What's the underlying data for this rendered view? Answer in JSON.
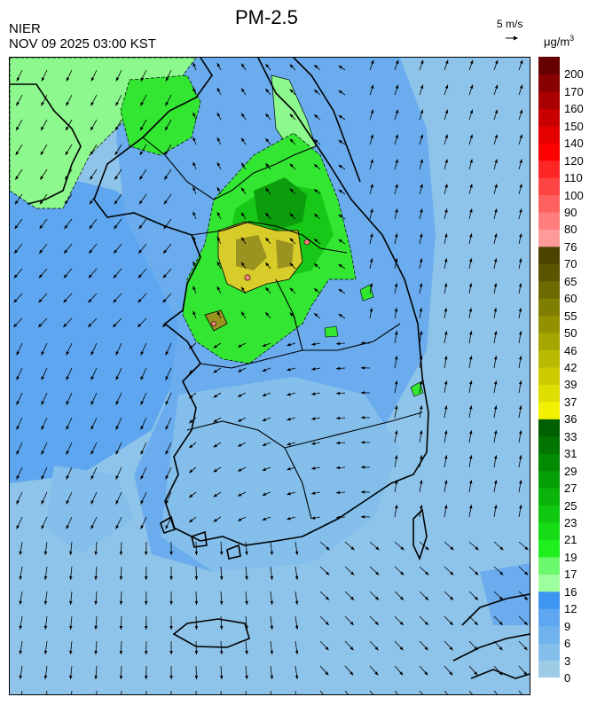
{
  "header": {
    "agency": "NIER",
    "timestamp": "NOV 09 2025 03:00 KST",
    "title": "PM-2.5",
    "wind_ref_label": "5 m/s",
    "unit_prefix": "μg/m",
    "unit_exp": "3"
  },
  "colorbar": {
    "labels": [
      "0",
      "3",
      "6",
      "9",
      "12",
      "16",
      "17",
      "19",
      "21",
      "23",
      "25",
      "27",
      "29",
      "31",
      "33",
      "36",
      "37",
      "39",
      "42",
      "46",
      "50",
      "55",
      "60",
      "65",
      "70",
      "76",
      "80",
      "90",
      "100",
      "110",
      "120",
      "140",
      "150",
      "160",
      "170",
      "200"
    ],
    "colors": [
      "#9ecbe6",
      "#84bfec",
      "#6fb2ee",
      "#5ea6ef",
      "#3c96f2",
      "#9dff9d",
      "#6cf86c",
      "#1ef01e",
      "#15dc15",
      "#0fc80f",
      "#0ab40a",
      "#069e06",
      "#038a03",
      "#017401",
      "#005f00",
      "#f2f200",
      "#dede00",
      "#cccc00",
      "#b9b900",
      "#a6a600",
      "#929200",
      "#807e00",
      "#6c6a00",
      "#5a5600",
      "#4a4400",
      "#ff9a9a",
      "#ff7d7d",
      "#ff6161",
      "#ff4444",
      "#ff2626",
      "#ff0000",
      "#e50000",
      "#c80000",
      "#a80000",
      "#880000",
      "#660000"
    ]
  },
  "map": {
    "palette": {
      "sea": "#8fc4ea",
      "sea_low": "#9ecbe6",
      "blue_mid": "#6aacee",
      "blue_deep": "#4b9df0",
      "green_light": "#8df88d",
      "green": "#32e632",
      "green_mid": "#18c818",
      "green_dark": "#0b9d0b",
      "yellow": "#d8cc2a",
      "olive": "#9a9320",
      "pink": "#ff8080"
    }
  }
}
